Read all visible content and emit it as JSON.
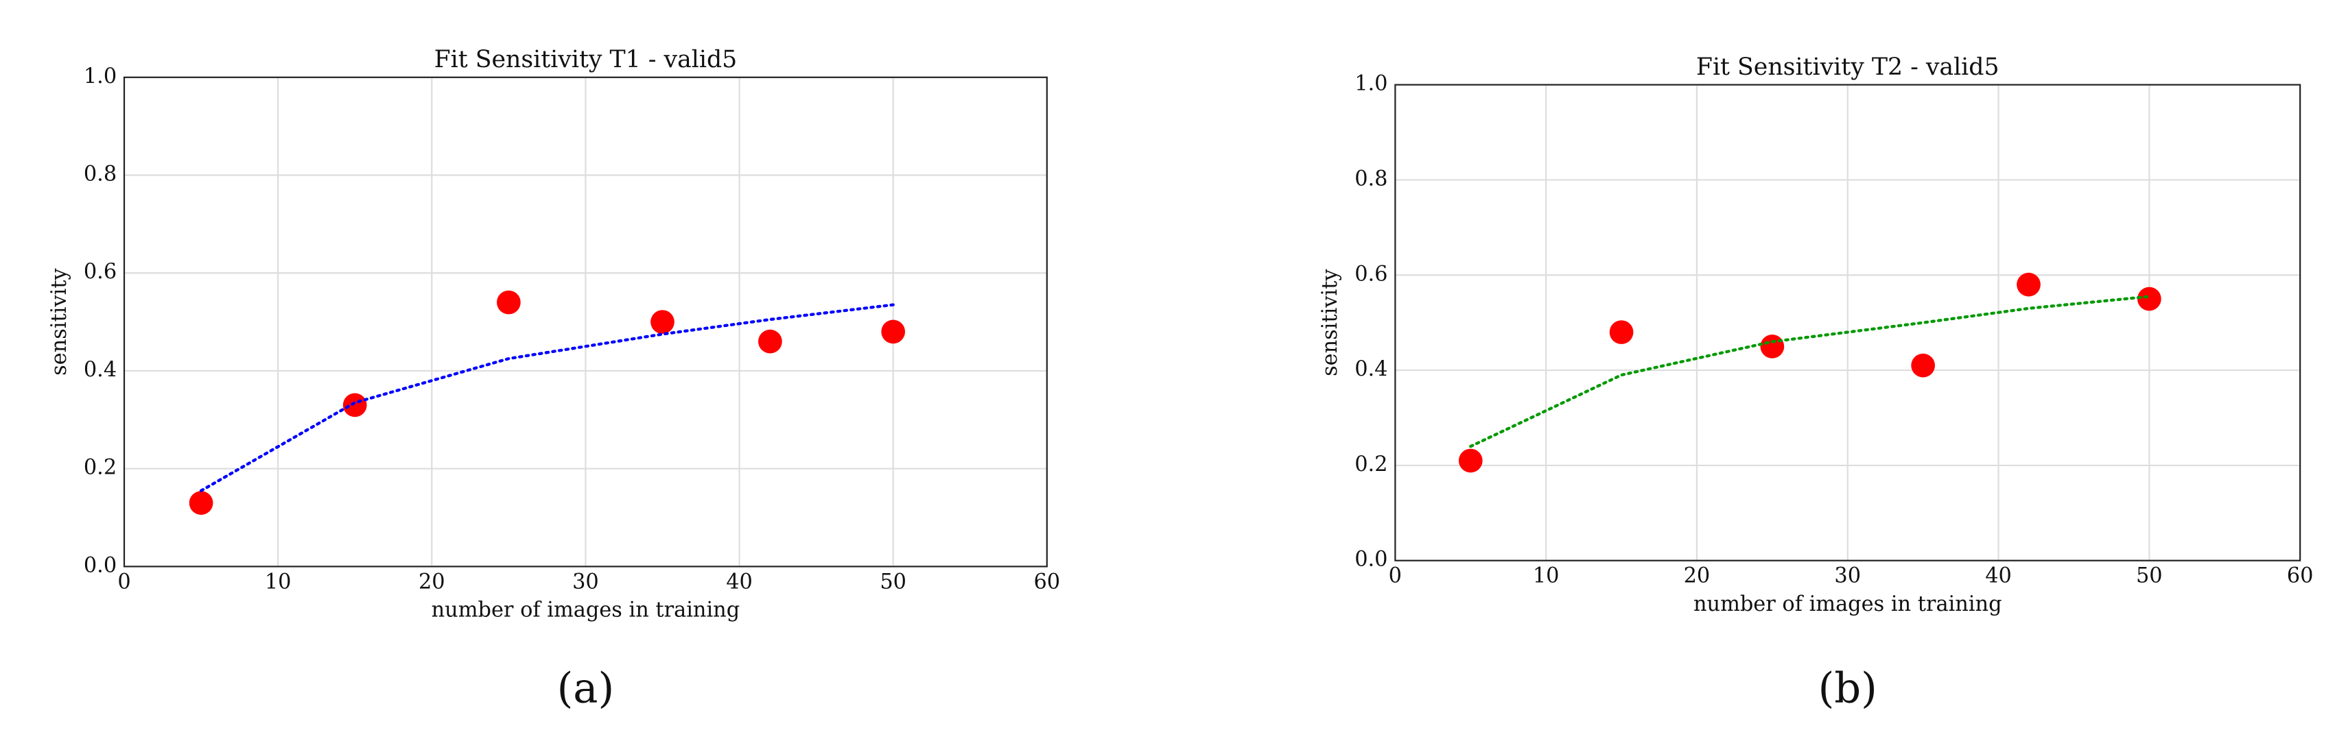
{
  "chart_data": [
    {
      "type": "scatter",
      "title": "Fit Sensitivity T1 - valid5",
      "xlabel": "number of images in training",
      "ylabel": "sensitivity",
      "caption": "(a)",
      "x": [
        5,
        15,
        25,
        35,
        42,
        50
      ],
      "series": [
        {
          "kind": "points",
          "color": "#ff0000",
          "values": [
            0.13,
            0.33,
            0.54,
            0.5,
            0.46,
            0.48
          ]
        },
        {
          "kind": "dotted-line",
          "color": "#0000ff",
          "values": [
            0.155,
            0.335,
            0.425,
            0.475,
            0.505,
            0.535
          ]
        }
      ],
      "xlim": [
        0,
        60
      ],
      "xticks": [
        0,
        10,
        20,
        30,
        40,
        50,
        60
      ],
      "ylim": [
        0,
        1
      ],
      "yticks": [
        {
          "value": 0,
          "label": "0.0"
        },
        0.2,
        0.4,
        0.6,
        0.8,
        {
          "value": 1,
          "label": "1.0"
        }
      ],
      "grid": true
    },
    {
      "type": "scatter",
      "title": "Fit Sensitivity T2 - valid5",
      "xlabel": "number of images in training",
      "ylabel": "sensitivity",
      "caption": "(b)",
      "x": [
        5,
        15,
        25,
        35,
        42,
        50
      ],
      "series": [
        {
          "kind": "points",
          "color": "#ff0000",
          "values": [
            0.21,
            0.48,
            0.45,
            0.41,
            0.58,
            0.55
          ]
        },
        {
          "kind": "dotted-line",
          "color": "#009900",
          "values": [
            0.24,
            0.39,
            0.46,
            0.5,
            0.53,
            0.555
          ]
        }
      ],
      "xlim": [
        0,
        60
      ],
      "xticks": [
        0,
        10,
        20,
        30,
        40,
        50,
        60
      ],
      "ylim": [
        0,
        1
      ],
      "yticks": [
        {
          "value": 0,
          "label": "0.0"
        },
        0.2,
        0.4,
        0.6,
        0.8,
        {
          "value": 1,
          "label": "1.0"
        }
      ],
      "grid": true
    }
  ]
}
